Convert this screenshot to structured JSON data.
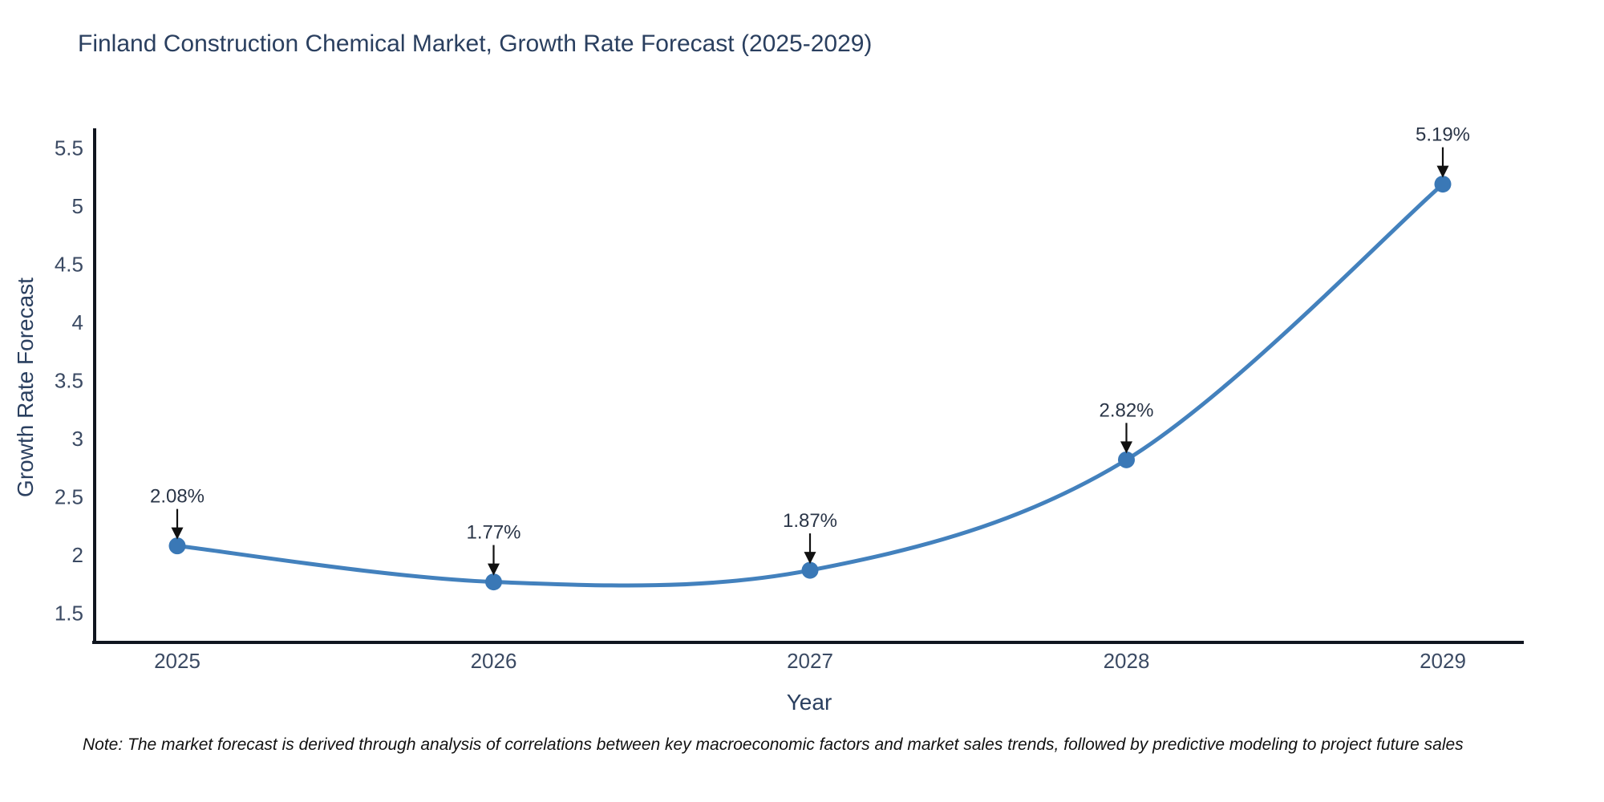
{
  "page": {
    "note": "Note: The market forecast is derived through analysis of correlations between key macroeconomic factors and market sales trends, followed by predictive modeling to project future sales"
  },
  "chart_data": {
    "type": "line",
    "title": "Finland Construction Chemical Market, Growth Rate Forecast (2025-2029)",
    "categories": [
      "2025",
      "2026",
      "2027",
      "2028",
      "2029"
    ],
    "values": [
      2.08,
      1.77,
      1.87,
      2.82,
      5.19
    ],
    "point_labels": [
      "2.08%",
      "1.77%",
      "1.87%",
      "2.82%",
      "5.19%"
    ],
    "xlabel": "Year",
    "ylabel": "Growth Rate Forecast",
    "yticks": [
      "1.5",
      "2",
      "2.5",
      "3",
      "3.5",
      "4",
      "4.5",
      "5",
      "5.5"
    ],
    "ytick_values": [
      1.5,
      2,
      2.5,
      3,
      3.5,
      4,
      4.5,
      5,
      5.5
    ],
    "ylim": [
      1.25,
      5.67
    ],
    "line_shape": "spline",
    "grid": false,
    "legend": "none",
    "colors": {
      "line": "#4381bd",
      "marker": "#3a78b6",
      "axis": "#10151f",
      "annotation_arrow": "#111111",
      "text": "#2a3f5f"
    }
  }
}
